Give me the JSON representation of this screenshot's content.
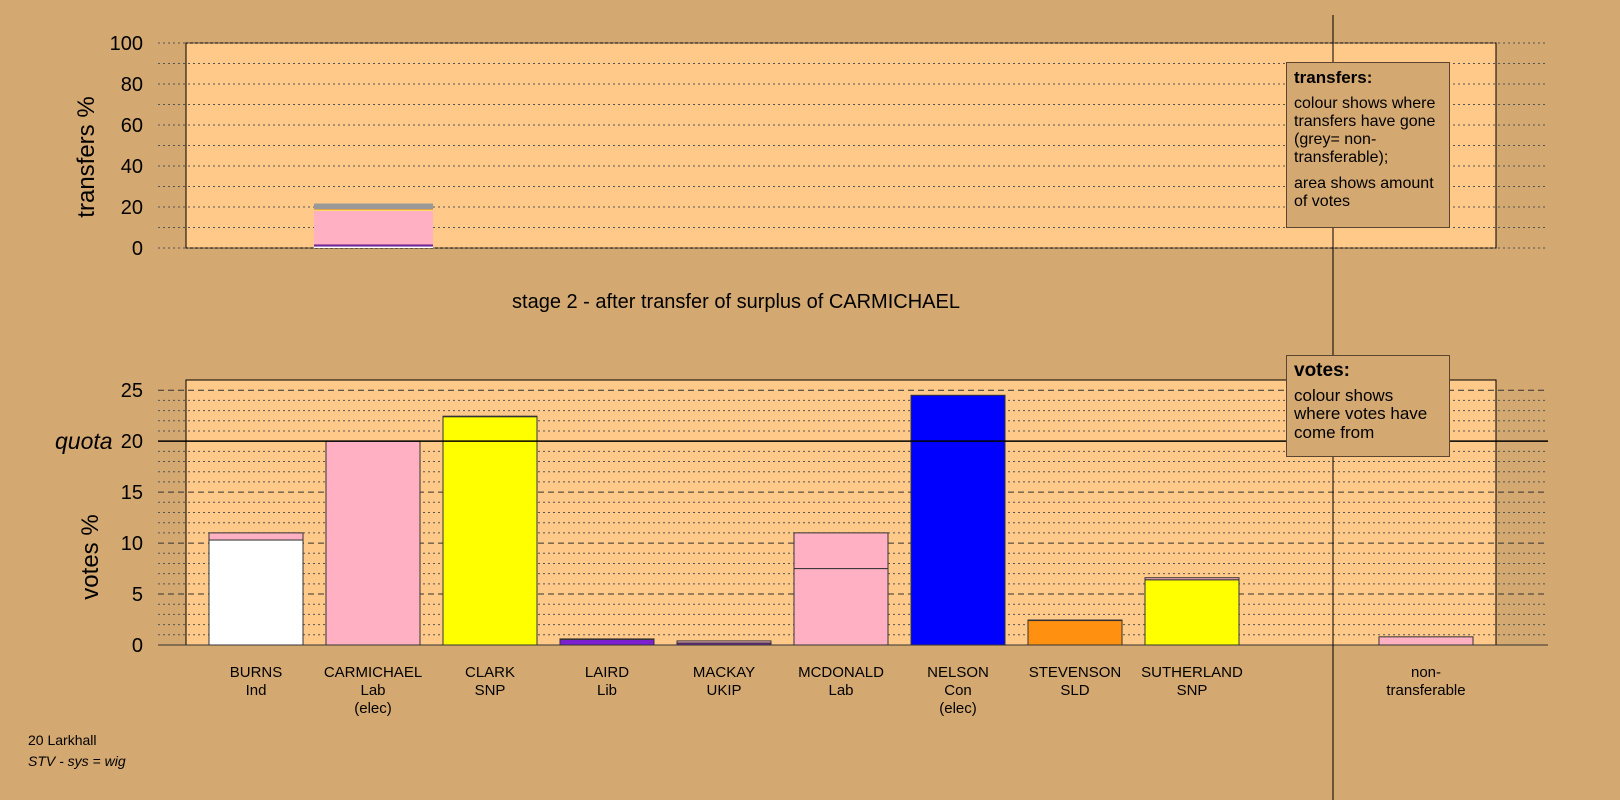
{
  "stage_title": "stage 2 - after transfer of surplus of CARMICHAEL",
  "footer": {
    "area": "20 Larkhall",
    "system": "STV - sys = wig"
  },
  "legends": {
    "transfers": {
      "title": "transfers:",
      "line1": "colour shows where transfers have gone (grey= non-transferable);",
      "line2": "area shows amount of votes"
    },
    "votes": {
      "title": "votes:",
      "line1": "colour shows where votes have come from"
    }
  },
  "colors": {
    "background": "#D4A871",
    "plot": "#FFC989",
    "Ind": "#FFFFFF",
    "Lab": "#FFB0C2",
    "SNP": "#FFFF00",
    "Lib": "#7B1FD1",
    "UKIP": "#70279A",
    "Con": "#0000FF",
    "SLD": "#FF9010",
    "nontransferable": "#999999"
  },
  "chart_data": [
    {
      "type": "bar",
      "stacked": true,
      "ylabel": "transfers %",
      "ylim": [
        0,
        100
      ],
      "yticks": [
        0,
        20,
        40,
        60,
        80,
        100
      ],
      "grid": true,
      "bars": [
        {
          "candidate": "CARMICHAEL",
          "segments": [
            {
              "party": "Ind",
              "value": 0.7
            },
            {
              "party": "UKIP",
              "value": 1.1
            },
            {
              "party": "Lab",
              "value": 16.5
            },
            {
              "party": "SNP",
              "value": 0.3
            },
            {
              "party": "SLD",
              "value": 0.3
            },
            {
              "party": "nontransferable",
              "value": 2.8
            }
          ]
        }
      ]
    },
    {
      "type": "bar",
      "stacked": true,
      "ylabel": "votes %",
      "ylim": [
        0,
        26
      ],
      "yticks": [
        0,
        5,
        10,
        15,
        20,
        25
      ],
      "quota": 20,
      "quota_label": "quota",
      "grid": true,
      "categories": [
        {
          "name": "BURNS",
          "party": "Ind",
          "status": ""
        },
        {
          "name": "CARMICHAEL",
          "party": "Lab",
          "status": "(elec)"
        },
        {
          "name": "CLARK",
          "party": "SNP",
          "status": ""
        },
        {
          "name": "LAIRD",
          "party": "Lib",
          "status": ""
        },
        {
          "name": "MACKAY",
          "party": "UKIP",
          "status": ""
        },
        {
          "name": "MCDONALD",
          "party": "Lab",
          "status": ""
        },
        {
          "name": "NELSON",
          "party": "Con",
          "status": "(elec)"
        },
        {
          "name": "STEVENSON",
          "party": "SLD",
          "status": ""
        },
        {
          "name": "SUTHERLAND",
          "party": "SNP",
          "status": ""
        }
      ],
      "bars": [
        {
          "candidate": "BURNS",
          "segments": [
            {
              "party": "Ind",
              "value": 10.3
            },
            {
              "party": "Lab",
              "value": 0.7
            }
          ]
        },
        {
          "candidate": "CARMICHAEL",
          "segments": [
            {
              "party": "Lab",
              "value": 20.0
            }
          ]
        },
        {
          "candidate": "CLARK",
          "segments": [
            {
              "party": "SNP",
              "value": 22.4
            },
            {
              "party": "Lab",
              "value": 0.05
            }
          ]
        },
        {
          "candidate": "LAIRD",
          "segments": [
            {
              "party": "Lib",
              "value": 0.55
            },
            {
              "party": "Lab",
              "value": 0.05
            }
          ]
        },
        {
          "candidate": "MACKAY",
          "segments": [
            {
              "party": "UKIP",
              "value": 0.2
            },
            {
              "party": "Lab",
              "value": 0.2
            }
          ]
        },
        {
          "candidate": "MCDONALD",
          "segments": [
            {
              "party": "Lab",
              "value": 7.5
            },
            {
              "party": "Lab",
              "value": 3.5
            }
          ]
        },
        {
          "candidate": "NELSON",
          "segments": [
            {
              "party": "Con",
              "value": 24.5
            }
          ]
        },
        {
          "candidate": "STEVENSON",
          "segments": [
            {
              "party": "SLD",
              "value": 2.4
            },
            {
              "party": "Lab",
              "value": 0.05
            }
          ]
        },
        {
          "candidate": "SUTHERLAND",
          "segments": [
            {
              "party": "SNP",
              "value": 6.4
            },
            {
              "party": "Lab",
              "value": 0.2
            }
          ]
        }
      ],
      "nontransferable": {
        "label_line1": "non-",
        "label_line2": "transferable",
        "segments": [
          {
            "party": "Lab",
            "value": 0.8
          }
        ]
      }
    }
  ]
}
